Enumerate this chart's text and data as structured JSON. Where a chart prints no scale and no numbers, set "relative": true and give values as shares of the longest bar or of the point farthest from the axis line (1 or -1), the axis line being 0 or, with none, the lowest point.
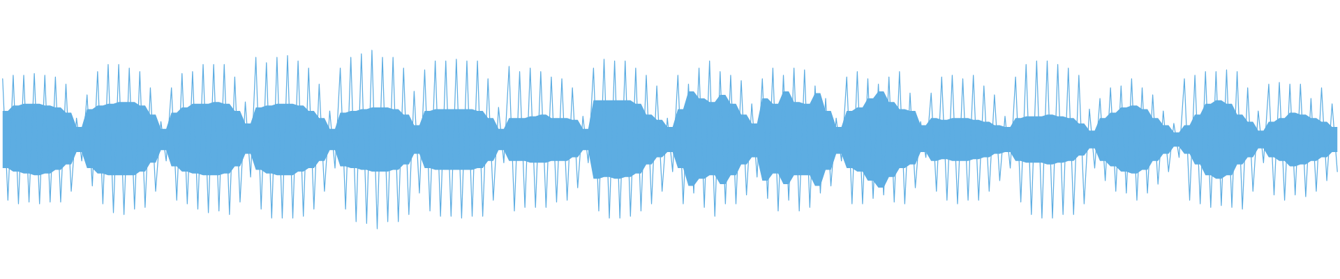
{
  "chart_data": {
    "type": "line",
    "relative": true,
    "categories": [
      null,
      null,
      null,
      null,
      null,
      null,
      null,
      null,
      null,
      null,
      null,
      null,
      null,
      null,
      null,
      null,
      null,
      null,
      null,
      null,
      null,
      null,
      null,
      null,
      null,
      null,
      null,
      null,
      null,
      null,
      null,
      null,
      null,
      null,
      null,
      null,
      null,
      null,
      null,
      null,
      null,
      null,
      null,
      null,
      null,
      null,
      null,
      null,
      null,
      null,
      null,
      null,
      null,
      null,
      null,
      null,
      null,
      null,
      null,
      null,
      null,
      null,
      null,
      null,
      null,
      null,
      null,
      null,
      null,
      null,
      null,
      null,
      null,
      null,
      null,
      null,
      null,
      null,
      null,
      null,
      null,
      null,
      null,
      null,
      null,
      null,
      null,
      null,
      null,
      null,
      null,
      null,
      null,
      null,
      null,
      null,
      null,
      null,
      null,
      null,
      null,
      null,
      null,
      null,
      null,
      null,
      null,
      null,
      null,
      null,
      null,
      null,
      null,
      null,
      null,
      null,
      null,
      null,
      null,
      null,
      null,
      null,
      null,
      null,
      null,
      null,
      null,
      null,
      null,
      null,
      null,
      null,
      null,
      null,
      null,
      null,
      null,
      null,
      null,
      null,
      null,
      null,
      null,
      null,
      null,
      null,
      null,
      null,
      null,
      null,
      null,
      null,
      null,
      null,
      null,
      null,
      null,
      null,
      null,
      null,
      null,
      null,
      null,
      null,
      null,
      null,
      null,
      null,
      null,
      null,
      null,
      null,
      null,
      null,
      null,
      null,
      null,
      null,
      null,
      null,
      null,
      null,
      null,
      null,
      null,
      null,
      null,
      null,
      null,
      null,
      null,
      null,
      null,
      null,
      null,
      null,
      null,
      null,
      null,
      null,
      null,
      null,
      null,
      null,
      null,
      null,
      null,
      null,
      null,
      null,
      null,
      null,
      null,
      null,
      null,
      null,
      null,
      null,
      null,
      null,
      null,
      null,
      null,
      null,
      null,
      null,
      null,
      null,
      null,
      null,
      null,
      null,
      null,
      null,
      null,
      null,
      null,
      null,
      null,
      null,
      null,
      null,
      null,
      null,
      null,
      null,
      null,
      null,
      null,
      null,
      null,
      null,
      null,
      null
    ],
    "series": [
      {
        "color": "#5dade2",
        "values": [
          0.84,
          0.16,
          0.86,
          0.14,
          0.86,
          0.15,
          0.87,
          0.14,
          0.86,
          0.15,
          0.85,
          0.15,
          0.81,
          0.21,
          0.62,
          0.38,
          0.75,
          0.24,
          0.88,
          0.14,
          0.92,
          0.09,
          0.92,
          0.08,
          0.9,
          0.11,
          0.88,
          0.12,
          0.79,
          0.21,
          0.6,
          0.38,
          0.79,
          0.16,
          0.87,
          0.14,
          0.88,
          0.11,
          0.92,
          0.09,
          0.92,
          0.1,
          0.92,
          0.08,
          0.85,
          0.15,
          0.71,
          0.29,
          0.96,
          0.11,
          0.93,
          0.06,
          0.96,
          0.06,
          0.97,
          0.06,
          0.94,
          0.07,
          0.9,
          0.11,
          0.81,
          0.21,
          0.66,
          0.34,
          0.9,
          0.11,
          0.96,
          0.04,
          0.98,
          0.03,
          1,
          0,
          0.96,
          0.04,
          0.96,
          0.04,
          0.9,
          0.08,
          0.77,
          0.2,
          0.89,
          0.1,
          0.94,
          0.07,
          0.94,
          0.07,
          0.95,
          0.06,
          0.94,
          0.07,
          0.94,
          0.07,
          0.84,
          0.16,
          0.68,
          0.37,
          0.91,
          0.1,
          0.88,
          0.12,
          0.9,
          0.12,
          0.88,
          0.12,
          0.85,
          0.15,
          0.84,
          0.16,
          0.79,
          0.23,
          0.63,
          0.37,
          0.9,
          0.1,
          0.95,
          0.06,
          0.94,
          0.06,
          0.94,
          0.07,
          0.9,
          0.1,
          0.86,
          0.14,
          0.8,
          0.21,
          0.62,
          0.32,
          0.86,
          0.14,
          0.81,
          0.2,
          0.9,
          0.12,
          0.94,
          0.07,
          0.88,
          0.14,
          0.86,
          0.14,
          0.83,
          0.19,
          0.7,
          0.29,
          0.84,
          0.17,
          0.9,
          0.1,
          0.86,
          0.16,
          0.9,
          0.1,
          0.89,
          0.12,
          0.8,
          0.2,
          0.73,
          0.24,
          0.62,
          0.38,
          0.85,
          0.14,
          0.88,
          0.14,
          0.84,
          0.17,
          0.81,
          0.19,
          0.85,
          0.15,
          0.88,
          0.14,
          0.76,
          0.23,
          0.6,
          0.4,
          0.76,
          0.21,
          0.85,
          0.16,
          0.86,
          0.14,
          0.84,
          0.16,
          0.86,
          0.16,
          0.8,
          0.21,
          0.75,
          0.27,
          0.63,
          0.34,
          0.85,
          0.15,
          0.92,
          0.08,
          0.94,
          0.06,
          0.94,
          0.06,
          0.92,
          0.08,
          0.9,
          0.08,
          0.86,
          0.14,
          0.67,
          0.34,
          0.73,
          0.27,
          0.79,
          0.21,
          0.8,
          0.2,
          0.84,
          0.16,
          0.79,
          0.2,
          0.75,
          0.25,
          0.66,
          0.32,
          0.59,
          0.4,
          0.84,
          0.16,
          0.86,
          0.14,
          0.88,
          0.12,
          0.88,
          0.13,
          0.89,
          0.12,
          0.88,
          0.11,
          0.79,
          0.21,
          0.66,
          0.37,
          0.81,
          0.19,
          0.82,
          0.16,
          0.81,
          0.19,
          0.81,
          0.18,
          0.73,
          0.21,
          0.79,
          0.27,
          0.7,
          0.32
        ],
        "upper": [
          0.66,
          0.66,
          0.69,
          0.69,
          0.7,
          0.7,
          0.7,
          0.7,
          0.69,
          0.69,
          0.68,
          0.68,
          0.65,
          0.65,
          0.57,
          0.57,
          0.67,
          0.67,
          0.69,
          0.69,
          0.7,
          0.7,
          0.71,
          0.71,
          0.71,
          0.71,
          0.69,
          0.69,
          0.64,
          0.64,
          0.56,
          0.56,
          0.65,
          0.65,
          0.68,
          0.68,
          0.7,
          0.7,
          0.7,
          0.7,
          0.71,
          0.71,
          0.7,
          0.7,
          0.66,
          0.66,
          0.59,
          0.59,
          0.68,
          0.68,
          0.69,
          0.69,
          0.7,
          0.7,
          0.7,
          0.7,
          0.69,
          0.69,
          0.66,
          0.66,
          0.62,
          0.62,
          0.56,
          0.56,
          0.65,
          0.65,
          0.66,
          0.66,
          0.67,
          0.67,
          0.68,
          0.68,
          0.68,
          0.68,
          0.67,
          0.67,
          0.64,
          0.64,
          0.58,
          0.58,
          0.66,
          0.66,
          0.67,
          0.67,
          0.67,
          0.67,
          0.67,
          0.67,
          0.67,
          0.67,
          0.66,
          0.66,
          0.62,
          0.62,
          0.56,
          0.56,
          0.62,
          0.62,
          0.62,
          0.62,
          0.63,
          0.63,
          0.64,
          0.64,
          0.62,
          0.62,
          0.62,
          0.62,
          0.61,
          0.61,
          0.56,
          0.56,
          0.72,
          0.72,
          0.72,
          0.72,
          0.72,
          0.72,
          0.72,
          0.72,
          0.7,
          0.7,
          0.64,
          0.64,
          0.61,
          0.61,
          0.57,
          0.57,
          0.67,
          0.67,
          0.77,
          0.77,
          0.73,
          0.73,
          0.71,
          0.71,
          0.75,
          0.75,
          0.7,
          0.7,
          0.64,
          0.64,
          0.59,
          0.59,
          0.73,
          0.73,
          0.7,
          0.7,
          0.77,
          0.77,
          0.71,
          0.71,
          0.7,
          0.7,
          0.76,
          0.76,
          0.66,
          0.66,
          0.57,
          0.57,
          0.66,
          0.66,
          0.68,
          0.68,
          0.73,
          0.73,
          0.77,
          0.77,
          0.71,
          0.71,
          0.67,
          0.67,
          0.66,
          0.66,
          0.58,
          0.58,
          0.62,
          0.62,
          0.61,
          0.61,
          0.62,
          0.62,
          0.62,
          0.62,
          0.61,
          0.61,
          0.6,
          0.6,
          0.58,
          0.58,
          0.57,
          0.57,
          0.62,
          0.62,
          0.63,
          0.63,
          0.63,
          0.63,
          0.64,
          0.64,
          0.63,
          0.63,
          0.62,
          0.62,
          0.59,
          0.59,
          0.55,
          0.55,
          0.62,
          0.62,
          0.65,
          0.65,
          0.68,
          0.68,
          0.69,
          0.69,
          0.67,
          0.67,
          0.62,
          0.62,
          0.58,
          0.58,
          0.54,
          0.54,
          0.58,
          0.58,
          0.64,
          0.64,
          0.7,
          0.7,
          0.72,
          0.72,
          0.7,
          0.7,
          0.64,
          0.64,
          0.6,
          0.6,
          0.55,
          0.55,
          0.6,
          0.6,
          0.62,
          0.62,
          0.65,
          0.65,
          0.64,
          0.64,
          0.62,
          0.62,
          0.6,
          0.6,
          0.57,
          0.57
        ],
        "lower": [
          0.34,
          0.34,
          0.32,
          0.32,
          0.31,
          0.31,
          0.3,
          0.3,
          0.31,
          0.31,
          0.33,
          0.33,
          0.36,
          0.36,
          0.43,
          0.43,
          0.34,
          0.34,
          0.31,
          0.31,
          0.3,
          0.3,
          0.3,
          0.3,
          0.3,
          0.3,
          0.32,
          0.32,
          0.37,
          0.37,
          0.44,
          0.44,
          0.35,
          0.35,
          0.32,
          0.32,
          0.31,
          0.31,
          0.3,
          0.3,
          0.3,
          0.3,
          0.31,
          0.31,
          0.35,
          0.35,
          0.42,
          0.42,
          0.33,
          0.33,
          0.31,
          0.31,
          0.3,
          0.3,
          0.3,
          0.3,
          0.32,
          0.32,
          0.34,
          0.34,
          0.38,
          0.38,
          0.44,
          0.44,
          0.35,
          0.35,
          0.34,
          0.34,
          0.33,
          0.33,
          0.32,
          0.32,
          0.32,
          0.32,
          0.33,
          0.33,
          0.36,
          0.36,
          0.42,
          0.42,
          0.34,
          0.34,
          0.33,
          0.33,
          0.33,
          0.33,
          0.33,
          0.33,
          0.33,
          0.33,
          0.34,
          0.34,
          0.38,
          0.38,
          0.44,
          0.44,
          0.38,
          0.38,
          0.38,
          0.38,
          0.37,
          0.37,
          0.37,
          0.37,
          0.38,
          0.38,
          0.38,
          0.38,
          0.4,
          0.4,
          0.44,
          0.44,
          0.28,
          0.28,
          0.29,
          0.29,
          0.28,
          0.28,
          0.29,
          0.29,
          0.31,
          0.31,
          0.36,
          0.36,
          0.4,
          0.4,
          0.43,
          0.43,
          0.34,
          0.34,
          0.24,
          0.24,
          0.28,
          0.28,
          0.3,
          0.3,
          0.25,
          0.25,
          0.3,
          0.3,
          0.36,
          0.36,
          0.4,
          0.4,
          0.27,
          0.27,
          0.31,
          0.31,
          0.25,
          0.25,
          0.3,
          0.3,
          0.3,
          0.3,
          0.24,
          0.24,
          0.33,
          0.33,
          0.42,
          0.42,
          0.34,
          0.34,
          0.32,
          0.32,
          0.27,
          0.27,
          0.23,
          0.23,
          0.29,
          0.29,
          0.34,
          0.34,
          0.36,
          0.36,
          0.43,
          0.43,
          0.38,
          0.38,
          0.39,
          0.39,
          0.38,
          0.38,
          0.38,
          0.38,
          0.39,
          0.39,
          0.4,
          0.4,
          0.42,
          0.42,
          0.43,
          0.43,
          0.38,
          0.38,
          0.37,
          0.37,
          0.37,
          0.37,
          0.36,
          0.36,
          0.37,
          0.37,
          0.38,
          0.38,
          0.41,
          0.41,
          0.45,
          0.45,
          0.38,
          0.38,
          0.35,
          0.35,
          0.32,
          0.32,
          0.31,
          0.31,
          0.33,
          0.33,
          0.38,
          0.38,
          0.42,
          0.42,
          0.46,
          0.46,
          0.42,
          0.42,
          0.36,
          0.36,
          0.3,
          0.3,
          0.28,
          0.28,
          0.3,
          0.3,
          0.36,
          0.36,
          0.4,
          0.4,
          0.45,
          0.45,
          0.4,
          0.4,
          0.38,
          0.38,
          0.35,
          0.35,
          0.36,
          0.36,
          0.38,
          0.38,
          0.4,
          0.4,
          0.43,
          0.43
        ]
      }
    ]
  }
}
